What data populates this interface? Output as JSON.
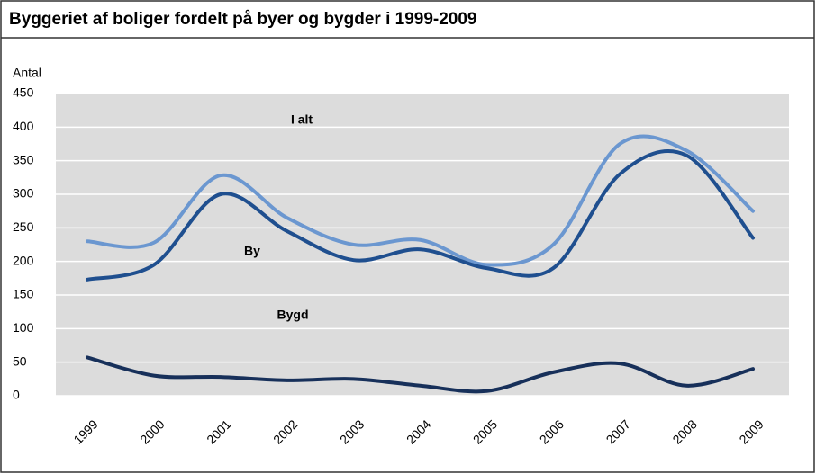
{
  "chart_data": {
    "type": "line",
    "title": "Byggeriet af boliger fordelt på byer og bygder i 1999-2009",
    "y_label": "Antal",
    "categories": [
      "1999",
      "2000",
      "2001",
      "2002",
      "2003",
      "2004",
      "2005",
      "2006",
      "2007",
      "2008",
      "2009"
    ],
    "series": [
      {
        "name": "I alt",
        "color": "#6b97d0",
        "values": [
          230,
          228,
          328,
          265,
          225,
          232,
          195,
          225,
          375,
          365,
          275
        ]
      },
      {
        "name": "By",
        "color": "#1f4f8f",
        "values": [
          173,
          195,
          300,
          245,
          202,
          218,
          190,
          190,
          330,
          358,
          235
        ]
      },
      {
        "name": "Bygd",
        "color": "#17305a",
        "values": [
          57,
          30,
          28,
          23,
          25,
          15,
          7,
          35,
          48,
          15,
          40
        ]
      }
    ],
    "ylim": [
      0,
      450
    ],
    "yticks": [
      0,
      50,
      100,
      150,
      200,
      250,
      300,
      350,
      400,
      450
    ],
    "grid": true
  }
}
